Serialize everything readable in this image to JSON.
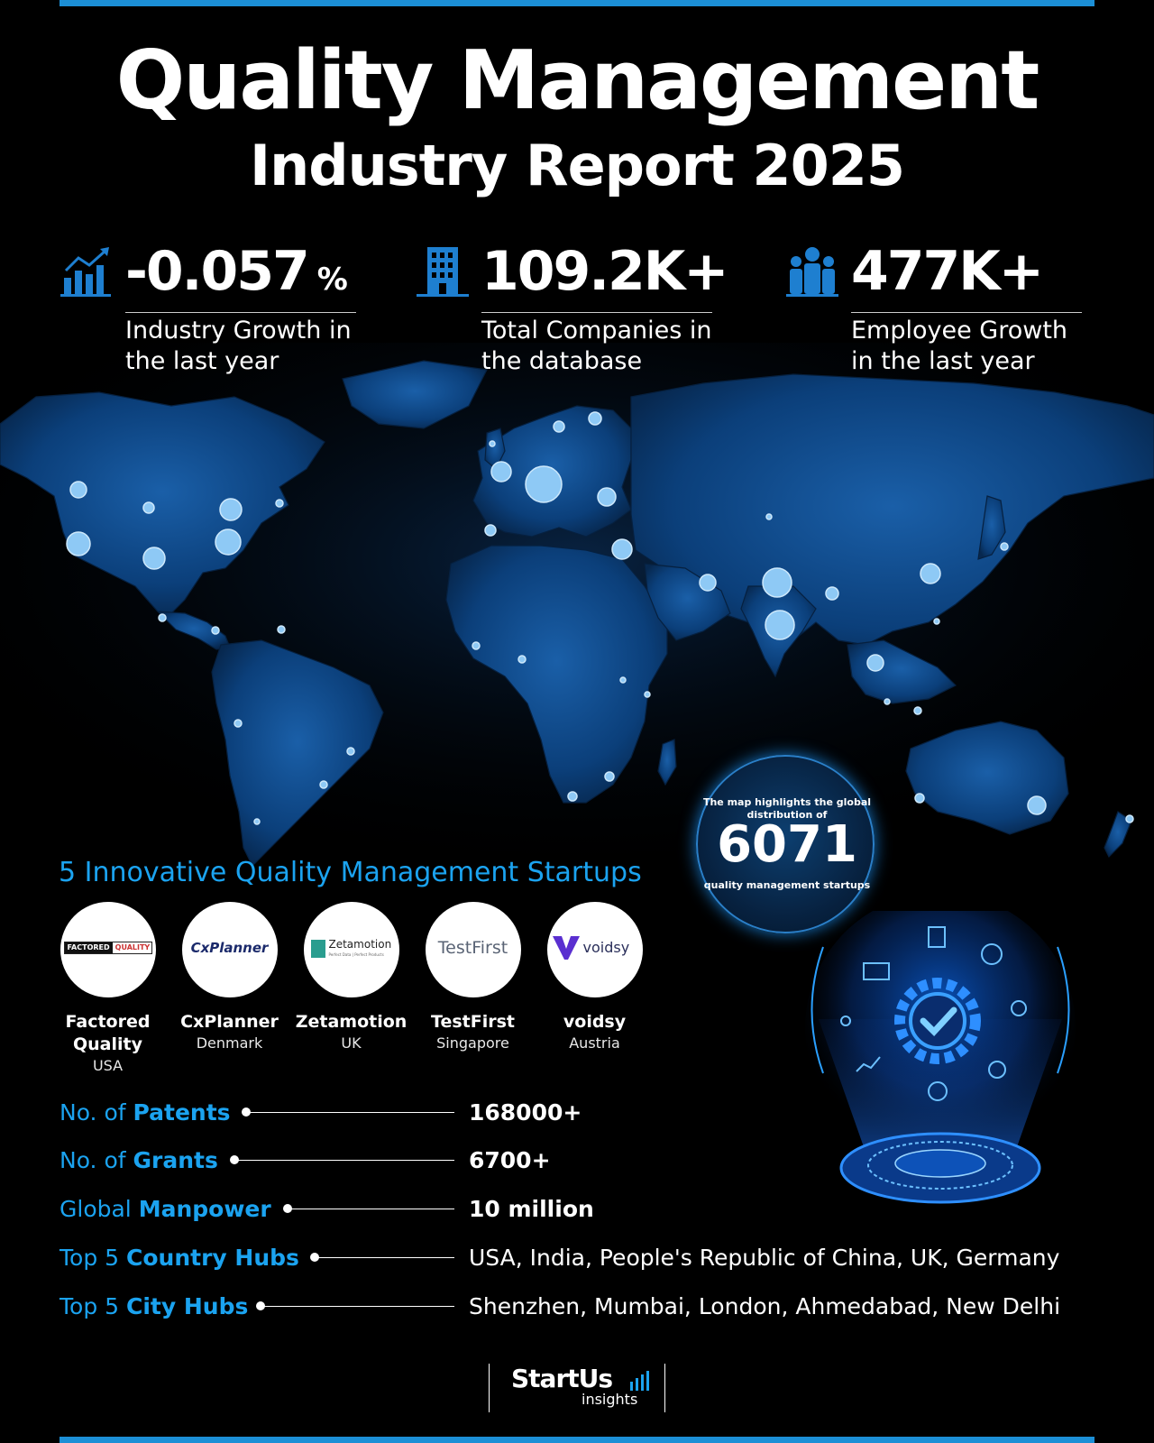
{
  "header": {
    "title": "Quality Management",
    "subtitle": "Industry Report 2025"
  },
  "stats": [
    {
      "value": "-0.057",
      "unit": "%",
      "label": "Industry Growth in the last year",
      "icon": "growth-chart-icon"
    },
    {
      "value": "109.2K+",
      "unit": "",
      "label": "Total Companies in the database",
      "icon": "building-icon"
    },
    {
      "value": "477K+",
      "unit": "",
      "label": "Employee Growth in the last year",
      "icon": "people-icon"
    }
  ],
  "highlight": {
    "line1": "The map highlights the global distribution of",
    "number": "6071",
    "line2": "quality management startups"
  },
  "startups_section": {
    "title": "5 Innovative Quality Management Startups",
    "items": [
      {
        "name": "Factored Quality",
        "country": "USA",
        "logo_text": "FACTORED QUALITY"
      },
      {
        "name": "CxPlanner",
        "country": "Denmark",
        "logo_text": "CxPlanner"
      },
      {
        "name": "Zetamotion",
        "country": "UK",
        "logo_text": "Zetamotion",
        "logo_tagline": "Perfect Data | Perfect Products"
      },
      {
        "name": "TestFirst",
        "country": "Singapore",
        "logo_text": "TestFirst"
      },
      {
        "name": "voidsy",
        "country": "Austria",
        "logo_text": "voidsy"
      }
    ]
  },
  "facts": [
    {
      "prefix": "No. of ",
      "strong": "Patents",
      "value": "168000+"
    },
    {
      "prefix": "No. of ",
      "strong": "Grants",
      "value": "6700+"
    },
    {
      "prefix": "Global ",
      "strong": "Manpower",
      "value": "10 million"
    },
    {
      "prefix": "Top 5 ",
      "strong": "Country Hubs",
      "value": "USA, India, People's Republic of China, UK, Germany"
    },
    {
      "prefix": "Top 5 ",
      "strong": "City Hubs",
      "value": "Shenzhen, Mumbai, London, Ahmedabad, New Delhi"
    }
  ],
  "footer": {
    "brand": "StartUs",
    "sub": "insights"
  },
  "colors": {
    "accent": "#1ba3f0",
    "bar": "#1c8fd6",
    "map_land": "#0d4c8f",
    "map_dot": "#8ec9f5",
    "background": "#000000"
  }
}
